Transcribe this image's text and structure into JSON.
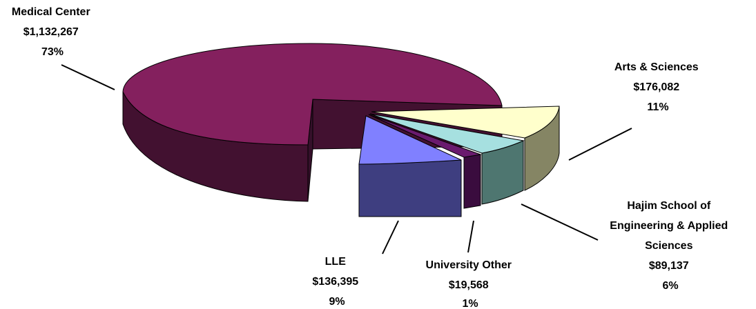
{
  "chart_data": {
    "type": "pie",
    "title": "",
    "style": "3d-exploded",
    "slices": [
      {
        "key": "medical",
        "name": "Medical Center",
        "value": 1132267,
        "value_label": "$1,132,267",
        "percent_label": "73%",
        "color": "#84205E"
      },
      {
        "key": "arts",
        "name": "Arts & Sciences",
        "value": 176082,
        "value_label": "$176,082",
        "percent_label": "11%",
        "color": "#FFFFCC"
      },
      {
        "key": "hajim",
        "name_lines": [
          "Hajim School of",
          "Engineering & Applied",
          "Sciences"
        ],
        "value": 89137,
        "value_label": "$89,137",
        "percent_label": "6%",
        "color": "#A6E0E0"
      },
      {
        "key": "univ",
        "name": "University Other",
        "value": 19568,
        "value_label": "$19,568",
        "percent_label": "1%",
        "color": "#6A1A6E"
      },
      {
        "key": "lle",
        "name": "LLE",
        "value": 136395,
        "value_label": "$136,395",
        "percent_label": "9%",
        "color": "#8080FF"
      }
    ],
    "colors": {
      "medical_side": "#421130",
      "arts_side": "#858564",
      "hajim_side": "#4E7670",
      "univ_side": "#3A0C3E",
      "lle_side": "#3E3E80",
      "outline": "#000000"
    }
  }
}
